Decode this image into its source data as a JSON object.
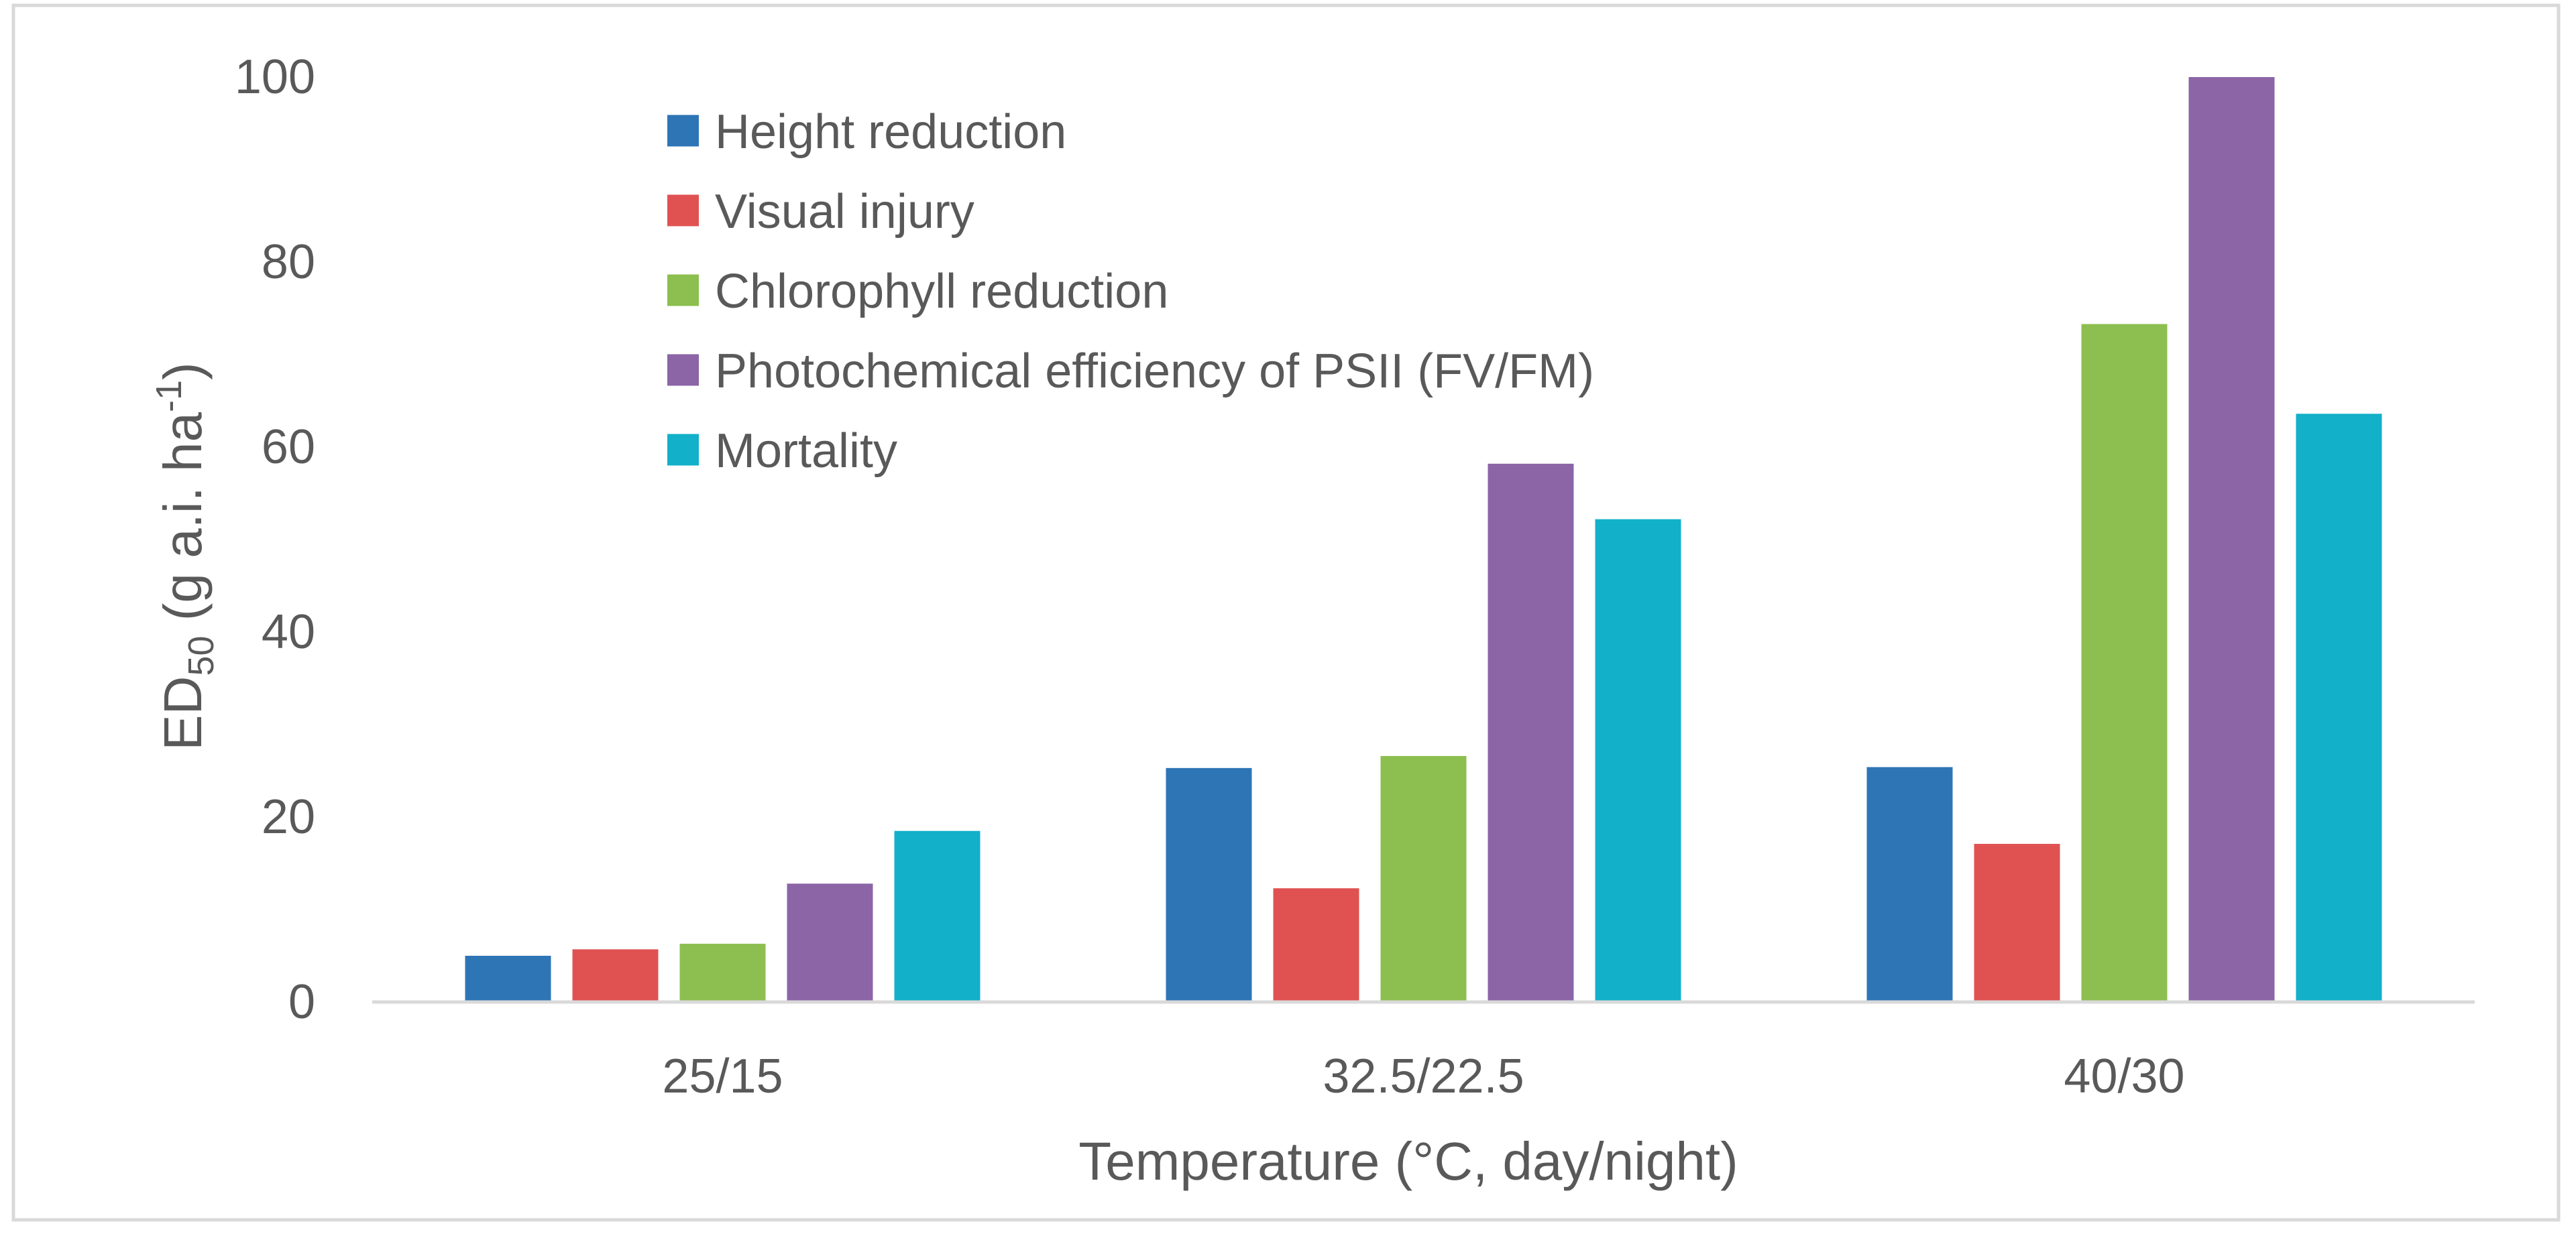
{
  "chart_data": {
    "type": "bar",
    "xlabel": "Temperature (°C, day/night)",
    "ylabel": {
      "main": "ED",
      "sub": "50",
      "unit_prefix": " (g a.i. ha",
      "sup": "-1",
      "unit_suffix": ")"
    },
    "categories": [
      "25/15",
      "32.5/22.5",
      "40/30"
    ],
    "ylim": [
      0,
      100
    ],
    "yticks": [
      0,
      20,
      40,
      60,
      80,
      100
    ],
    "grid": false,
    "legend_position": "top-left",
    "series": [
      {
        "name": "Height reduction",
        "color": "#2e75b6",
        "values": [
          5.0,
          25.3,
          25.4
        ]
      },
      {
        "name": "Visual injury",
        "color": "#e05252",
        "values": [
          5.7,
          12.3,
          17.1
        ]
      },
      {
        "name": "Chlorophyll reduction",
        "color": "#8cbf4f",
        "values": [
          6.3,
          26.6,
          73.3
        ]
      },
      {
        "name": "Photochemical efficiency of PSII (FV/FM)",
        "color": "#8b65a6",
        "values": [
          12.8,
          58.2,
          100.0
        ]
      },
      {
        "name": "Mortality",
        "color": "#12b0c9",
        "values": [
          18.5,
          52.2,
          63.6
        ]
      }
    ]
  }
}
